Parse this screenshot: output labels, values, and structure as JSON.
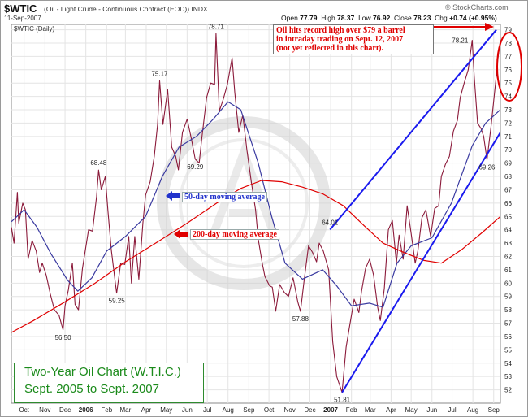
{
  "header": {
    "symbol": "$WTIC",
    "description": "(Oil - Light Crude - Continuous Contract (EOD)) INDX",
    "date": "11-Sep-2007",
    "ticker_label": "$WTIC (Daily)",
    "watermark": "© StockCharts.com",
    "open_label": "Open",
    "open": "77.79",
    "high_label": "High",
    "high": "78.37",
    "low_label": "Low",
    "low": "76.92",
    "close_label": "Close",
    "close": "78.23",
    "chg_label": "Chg",
    "chg": "+0.74 (+0.95%)"
  },
  "annotations": {
    "ma50": "50-day moving average",
    "ma200": "200-day moving average",
    "callout_lines": [
      "Oil hits record high over $79 a barrel",
      "in intraday trading on Sept. 12, 2007",
      "(not yet reflected in this chart)."
    ],
    "title_lines": [
      "Two-Year Oil Chart (W.T.I.C.)",
      "Sept. 2005 to Sept. 2007"
    ]
  },
  "colors": {
    "price": "#8b1a3a",
    "ma50": "#3a3aa0",
    "ma200": "#e00000",
    "trendline": "#1a1aee",
    "callout": "#e00000",
    "title": "#1a8a1a"
  },
  "chart_data": {
    "type": "line",
    "title": "",
    "xlabel": "",
    "ylabel": "",
    "ylim": [
      51,
      79.4
    ],
    "x_range": [
      "2005-09-12",
      "2007-09-11"
    ],
    "y_ticks": [
      52,
      53,
      54,
      55,
      56,
      57,
      58,
      59,
      60,
      61,
      62,
      63,
      64,
      65,
      66,
      67,
      68,
      69,
      70,
      71,
      72,
      73,
      74,
      75,
      76,
      77,
      78,
      79
    ],
    "x_ticks": [
      {
        "label": "Oct",
        "date": "2005-10-01"
      },
      {
        "label": "Nov",
        "date": "2005-11-01"
      },
      {
        "label": "Dec",
        "date": "2005-12-01"
      },
      {
        "label": "2006",
        "date": "2006-01-01",
        "bold": true
      },
      {
        "label": "Feb",
        "date": "2006-02-01"
      },
      {
        "label": "Mar",
        "date": "2006-03-01"
      },
      {
        "label": "Apr",
        "date": "2006-04-01"
      },
      {
        "label": "May",
        "date": "2006-05-01"
      },
      {
        "label": "Jun",
        "date": "2006-06-01"
      },
      {
        "label": "Jul",
        "date": "2006-07-01"
      },
      {
        "label": "Aug",
        "date": "2006-08-01"
      },
      {
        "label": "Sep",
        "date": "2006-09-01"
      },
      {
        "label": "Oct",
        "date": "2006-10-01"
      },
      {
        "label": "Nov",
        "date": "2006-11-01"
      },
      {
        "label": "Dec",
        "date": "2006-12-01"
      },
      {
        "label": "2007",
        "date": "2007-01-01",
        "bold": true
      },
      {
        "label": "Feb",
        "date": "2007-02-01"
      },
      {
        "label": "Mar",
        "date": "2007-03-01"
      },
      {
        "label": "Apr",
        "date": "2007-04-01"
      },
      {
        "label": "May",
        "date": "2007-05-01"
      },
      {
        "label": "Jun",
        "date": "2007-06-01"
      },
      {
        "label": "Jul",
        "date": "2007-07-01"
      },
      {
        "label": "Aug",
        "date": "2007-08-01"
      },
      {
        "label": "Sep",
        "date": "2007-09-01"
      }
    ],
    "series": [
      {
        "key": "price",
        "points": [
          [
            "2005-09-12",
            64.2
          ],
          [
            "2005-09-16",
            63.0
          ],
          [
            "2005-09-21",
            66.8
          ],
          [
            "2005-09-23",
            64.5
          ],
          [
            "2005-09-29",
            66.0
          ],
          [
            "2005-10-03",
            65.5
          ],
          [
            "2005-10-07",
            61.8
          ],
          [
            "2005-10-13",
            63.2
          ],
          [
            "2005-10-19",
            62.4
          ],
          [
            "2005-10-24",
            60.8
          ],
          [
            "2005-10-28",
            61.5
          ],
          [
            "2005-11-03",
            60.6
          ],
          [
            "2005-11-09",
            59.2
          ],
          [
            "2005-11-15",
            58.0
          ],
          [
            "2005-11-22",
            57.6
          ],
          [
            "2005-11-28",
            56.5
          ],
          [
            "2005-12-01",
            58.3
          ],
          [
            "2005-12-06",
            59.5
          ],
          [
            "2005-12-12",
            61.5
          ],
          [
            "2005-12-16",
            58.4
          ],
          [
            "2005-12-21",
            58.0
          ],
          [
            "2005-12-27",
            61.1
          ],
          [
            "2006-01-05",
            64.0
          ],
          [
            "2006-01-11",
            63.9
          ],
          [
            "2006-01-17",
            66.5
          ],
          [
            "2006-01-20",
            68.48
          ],
          [
            "2006-01-24",
            67.0
          ],
          [
            "2006-01-30",
            68.0
          ],
          [
            "2006-02-03",
            65.4
          ],
          [
            "2006-02-08",
            62.5
          ],
          [
            "2006-02-14",
            60.0
          ],
          [
            "2006-02-16",
            59.25
          ],
          [
            "2006-02-22",
            61.5
          ],
          [
            "2006-02-28",
            61.4
          ],
          [
            "2006-03-06",
            63.5
          ],
          [
            "2006-03-10",
            60.0
          ],
          [
            "2006-03-15",
            63.5
          ],
          [
            "2006-03-21",
            60.3
          ],
          [
            "2006-03-27",
            64.5
          ],
          [
            "2006-03-31",
            66.6
          ],
          [
            "2006-04-07",
            67.6
          ],
          [
            "2006-04-13",
            69.5
          ],
          [
            "2006-04-18",
            71.9
          ],
          [
            "2006-04-21",
            75.17
          ],
          [
            "2006-04-26",
            71.9
          ],
          [
            "2006-05-03",
            74.5
          ],
          [
            "2006-05-09",
            70.2
          ],
          [
            "2006-05-15",
            69.5
          ],
          [
            "2006-05-19",
            68.5
          ],
          [
            "2006-05-25",
            71.3
          ],
          [
            "2006-06-01",
            72.3
          ],
          [
            "2006-06-07",
            70.9
          ],
          [
            "2006-06-13",
            69.3
          ],
          [
            "2006-06-19",
            69.0
          ],
          [
            "2006-06-23",
            70.9
          ],
          [
            "2006-06-30",
            73.9
          ],
          [
            "2006-07-06",
            75.0
          ],
          [
            "2006-07-12",
            74.9
          ],
          [
            "2006-07-14",
            78.71
          ],
          [
            "2006-07-19",
            72.9
          ],
          [
            "2006-07-25",
            73.8
          ],
          [
            "2006-07-31",
            74.9
          ],
          [
            "2006-08-07",
            76.9
          ],
          [
            "2006-08-11",
            74.3
          ],
          [
            "2006-08-17",
            71.3
          ],
          [
            "2006-08-23",
            72.6
          ],
          [
            "2006-08-29",
            70.0
          ],
          [
            "2006-09-05",
            67.5
          ],
          [
            "2006-09-11",
            65.5
          ],
          [
            "2006-09-15",
            63.3
          ],
          [
            "2006-09-21",
            61.5
          ],
          [
            "2006-09-25",
            60.5
          ],
          [
            "2006-10-02",
            59.8
          ],
          [
            "2006-10-06",
            59.7
          ],
          [
            "2006-10-11",
            57.9
          ],
          [
            "2006-10-17",
            59.9
          ],
          [
            "2006-10-24",
            59.3
          ],
          [
            "2006-10-30",
            59.0
          ],
          [
            "2006-11-06",
            60.4
          ],
          [
            "2006-11-13",
            58.6
          ],
          [
            "2006-11-17",
            57.88
          ],
          [
            "2006-11-22",
            60.0
          ],
          [
            "2006-11-29",
            62.8
          ],
          [
            "2006-12-05",
            62.3
          ],
          [
            "2006-12-11",
            61.6
          ],
          [
            "2006-12-15",
            63.0
          ],
          [
            "2006-12-21",
            62.4
          ],
          [
            "2006-12-29",
            61.0
          ],
          [
            "2007-01-04",
            55.6
          ],
          [
            "2007-01-10",
            53.0
          ],
          [
            "2007-01-18",
            51.81
          ],
          [
            "2007-01-24",
            55.2
          ],
          [
            "2007-01-30",
            57.0
          ],
          [
            "2007-02-05",
            58.8
          ],
          [
            "2007-02-12",
            57.8
          ],
          [
            "2007-02-16",
            59.4
          ],
          [
            "2007-02-22",
            61.1
          ],
          [
            "2007-02-28",
            61.8
          ],
          [
            "2007-03-06",
            60.6
          ],
          [
            "2007-03-12",
            58.2
          ],
          [
            "2007-03-16",
            57.2
          ],
          [
            "2007-03-22",
            59.6
          ],
          [
            "2007-03-28",
            64.0
          ],
          [
            "2007-04-03",
            64.7
          ],
          [
            "2007-04-09",
            61.5
          ],
          [
            "2007-04-13",
            63.6
          ],
          [
            "2007-04-19",
            61.8
          ],
          [
            "2007-04-25",
            65.8
          ],
          [
            "2007-05-01",
            63.7
          ],
          [
            "2007-05-07",
            61.5
          ],
          [
            "2007-05-11",
            62.4
          ],
          [
            "2007-05-17",
            64.9
          ],
          [
            "2007-05-23",
            65.5
          ],
          [
            "2007-05-30",
            63.5
          ],
          [
            "2007-06-05",
            65.6
          ],
          [
            "2007-06-11",
            65.8
          ],
          [
            "2007-06-15",
            68.0
          ],
          [
            "2007-06-21",
            68.9
          ],
          [
            "2007-06-27",
            69.5
          ],
          [
            "2007-07-03",
            71.4
          ],
          [
            "2007-07-09",
            72.2
          ],
          [
            "2007-07-13",
            73.9
          ],
          [
            "2007-07-19",
            75.0
          ],
          [
            "2007-07-25",
            76.0
          ],
          [
            "2007-07-31",
            78.21
          ],
          [
            "2007-08-03",
            75.5
          ],
          [
            "2007-08-08",
            72.0
          ],
          [
            "2007-08-13",
            71.6
          ],
          [
            "2007-08-17",
            71.0
          ],
          [
            "2007-08-22",
            69.26
          ],
          [
            "2007-08-28",
            71.7
          ],
          [
            "2007-09-04",
            75.1
          ],
          [
            "2007-09-07",
            76.7
          ],
          [
            "2007-09-11",
            78.23
          ]
        ]
      },
      {
        "key": "ma50",
        "points": [
          [
            "2005-09-12",
            64.6
          ],
          [
            "2005-10-01",
            65.5
          ],
          [
            "2005-10-20",
            64.2
          ],
          [
            "2005-11-10",
            62.2
          ],
          [
            "2005-12-05",
            60.2
          ],
          [
            "2005-12-20",
            59.4
          ],
          [
            "2006-01-10",
            60.4
          ],
          [
            "2006-02-01",
            62.4
          ],
          [
            "2006-03-01",
            63.5
          ],
          [
            "2006-03-31",
            65.0
          ],
          [
            "2006-04-25",
            68.0
          ],
          [
            "2006-05-20",
            70.2
          ],
          [
            "2006-06-15",
            71.0
          ],
          [
            "2006-07-10",
            72.3
          ],
          [
            "2006-08-01",
            73.6
          ],
          [
            "2006-08-20",
            73.0
          ],
          [
            "2006-09-15",
            69.0
          ],
          [
            "2006-10-05",
            65.0
          ],
          [
            "2006-10-25",
            61.5
          ],
          [
            "2006-11-20",
            60.3
          ],
          [
            "2006-12-20",
            61.0
          ],
          [
            "2007-01-10",
            59.8
          ],
          [
            "2007-02-01",
            58.3
          ],
          [
            "2007-02-28",
            58.5
          ],
          [
            "2007-03-20",
            58.2
          ],
          [
            "2007-04-10",
            61.5
          ],
          [
            "2007-05-01",
            62.8
          ],
          [
            "2007-06-01",
            63.4
          ],
          [
            "2007-06-30",
            66.0
          ],
          [
            "2007-07-31",
            70.3
          ],
          [
            "2007-08-20",
            72.0
          ],
          [
            "2007-09-11",
            73.0
          ]
        ]
      },
      {
        "key": "ma200",
        "points": [
          [
            "2005-09-12",
            56.3
          ],
          [
            "2005-10-15",
            57.2
          ],
          [
            "2005-12-01",
            58.6
          ],
          [
            "2006-01-15",
            60.0
          ],
          [
            "2006-03-01",
            61.6
          ],
          [
            "2006-04-15",
            63.0
          ],
          [
            "2006-06-01",
            64.5
          ],
          [
            "2006-07-15",
            66.0
          ],
          [
            "2006-08-20",
            67.1
          ],
          [
            "2006-09-20",
            67.7
          ],
          [
            "2006-10-20",
            67.6
          ],
          [
            "2006-11-20",
            67.2
          ],
          [
            "2006-12-20",
            66.7
          ],
          [
            "2007-01-20",
            65.8
          ],
          [
            "2007-02-20",
            64.3
          ],
          [
            "2007-03-20",
            63.0
          ],
          [
            "2007-04-20",
            62.3
          ],
          [
            "2007-05-20",
            61.7
          ],
          [
            "2007-06-15",
            61.5
          ],
          [
            "2007-07-15",
            62.5
          ],
          [
            "2007-08-15",
            63.8
          ],
          [
            "2007-09-11",
            65.0
          ]
        ]
      }
    ],
    "trendlines": [
      {
        "from": [
          "2006-12-31",
          64.01
        ],
        "to": [
          "2007-09-05",
          79.0
        ]
      },
      {
        "from": [
          "2007-01-18",
          51.81
        ],
        "to": [
          "2007-09-11",
          71.3
        ]
      }
    ],
    "price_labels": [
      {
        "date": "2005-11-28",
        "value": 56.5,
        "text": "56.50",
        "pos": "below"
      },
      {
        "date": "2006-01-20",
        "value": 68.48,
        "text": "68.48",
        "pos": "above"
      },
      {
        "date": "2006-02-16",
        "value": 59.25,
        "text": "59.25",
        "pos": "below"
      },
      {
        "date": "2006-04-21",
        "value": 75.17,
        "text": "75.17",
        "pos": "above"
      },
      {
        "date": "2006-06-13",
        "value": 69.29,
        "text": "69.29",
        "pos": "below"
      },
      {
        "date": "2006-07-14",
        "value": 78.71,
        "text": "78.71",
        "pos": "above"
      },
      {
        "date": "2006-11-17",
        "value": 57.88,
        "text": "57.88",
        "pos": "below"
      },
      {
        "date": "2006-12-31",
        "value": 64.01,
        "text": "64.01",
        "pos": "above"
      },
      {
        "date": "2007-01-18",
        "value": 51.81,
        "text": "51.81",
        "pos": "below"
      },
      {
        "date": "2007-07-31",
        "value": 78.21,
        "text": "78.21",
        "pos": "left"
      },
      {
        "date": "2007-08-22",
        "value": 69.26,
        "text": "69.26",
        "pos": "below"
      }
    ]
  }
}
